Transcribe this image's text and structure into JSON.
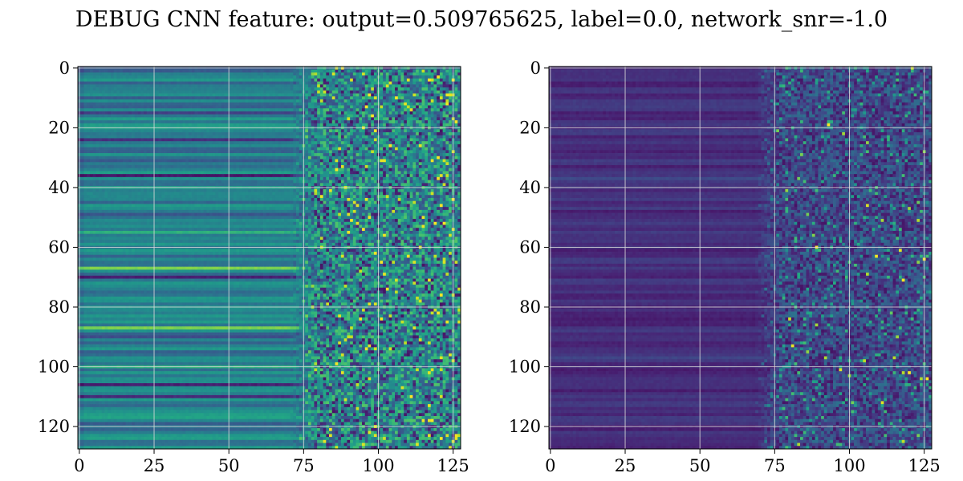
{
  "title": "DEBUG CNN feature: output=0.509765625, label=0.0, network_snr=-1.0",
  "chart_data": [
    {
      "type": "heatmap",
      "colormap": "viridis",
      "rows": 128,
      "cols": 128,
      "xlim": [
        0,
        127
      ],
      "ylim": [
        127,
        0
      ],
      "grid": true,
      "x_ticks": [
        0,
        25,
        50,
        75,
        100,
        125
      ],
      "y_ticks": [
        0,
        20,
        40,
        60,
        80,
        100,
        120
      ],
      "x_tick_labels": [
        "0",
        "25",
        "50",
        "75",
        "100",
        "125"
      ],
      "y_tick_labels": [
        "0",
        "20",
        "40",
        "60",
        "80",
        "100",
        "120"
      ],
      "description_pattern": "left columns (0-~70) show horizontal teal/green bands constant along each row; right columns (~75-127) show noisy speckle with yellow points",
      "mean_level": 0.42,
      "bright_rows": [
        55,
        67,
        87,
        100,
        117
      ],
      "dark_rows": [
        12,
        15,
        24,
        36,
        49,
        70,
        90,
        106,
        110
      ]
    },
    {
      "type": "heatmap",
      "colormap": "viridis",
      "rows": 128,
      "cols": 128,
      "xlim": [
        0,
        127
      ],
      "ylim": [
        127,
        0
      ],
      "grid": true,
      "x_ticks": [
        0,
        25,
        50,
        75,
        100,
        125
      ],
      "y_ticks": [
        0,
        20,
        40,
        60,
        80,
        100,
        120
      ],
      "x_tick_labels": [
        "0",
        "25",
        "50",
        "75",
        "100",
        "125"
      ],
      "y_tick_labels": [
        "0",
        "20",
        "40",
        "60",
        "80",
        "100",
        "120"
      ],
      "description_pattern": "mostly dark purple; faint horizontal bands on the left; noisy blue/teal speckle on right columns with sparse bright green/yellow points",
      "mean_level": 0.12,
      "bright_rows": [
        37,
        97
      ],
      "dark_rows": []
    }
  ]
}
